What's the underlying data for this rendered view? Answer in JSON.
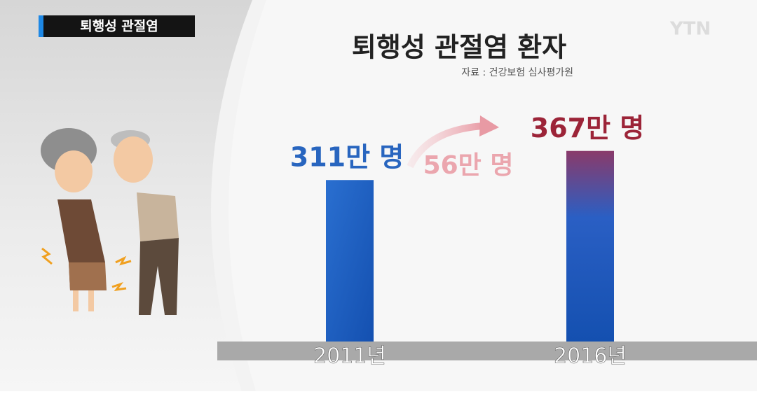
{
  "chart_data": {
    "type": "bar",
    "tag": "퇴행성 관절염",
    "logo": "YTN",
    "title": "퇴행성 관절염 환자",
    "source": "자료 : 건강보험 심사평가원",
    "categories": [
      "2011년",
      "2016년"
    ],
    "values": [
      311,
      367
    ],
    "value_labels": [
      "311만 명",
      "367만 명"
    ],
    "label_colors": [
      "#2865bf",
      "#9c2438"
    ],
    "color": "#1f5fc2",
    "annotation": "56만 명"
  }
}
